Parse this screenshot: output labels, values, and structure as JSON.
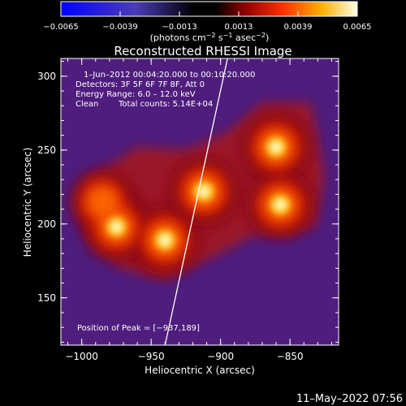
{
  "chart_data": {
    "type": "heatmap",
    "title": "Reconstructed RHESSI Image",
    "xlabel": "Heliocentric X (arcsec)",
    "ylabel": "Heliocentric Y (arcsec)",
    "xlim": [
      -1015,
      -815
    ],
    "ylim": [
      118,
      312
    ],
    "xticks": [
      -1000,
      -950,
      -900,
      -850
    ],
    "xtick_labels": [
      "−1000",
      "−950",
      "−900",
      "−850"
    ],
    "yticks": [
      150,
      200,
      250,
      300
    ],
    "ytick_labels": [
      "150",
      "200",
      "250",
      "300"
    ],
    "colorbar": {
      "min": -0.0065,
      "max": 0.0065,
      "ticks": [
        -0.0065,
        -0.0039,
        -0.0013,
        0.0013,
        0.0039,
        0.0065
      ],
      "tick_labels": [
        "−0.0065",
        "−0.0039",
        "−0.0013",
        "0.0013",
        "0.0039",
        "0.0065"
      ],
      "units_prefix": "(photons cm",
      "units_exp1": "−2",
      "units_mid1": " s",
      "units_exp2": "−1",
      "units_mid2": " asec",
      "units_exp3": "−2",
      "units_suffix": ")"
    },
    "annotations": [
      "1–Jun–2012 00:04:20.000 to 00:10:20.000",
      "Detectors: 3F 5F 6F 7F 8F, Att 0",
      "Energy Range: 6.0 – 12.0 keV"
    ],
    "clean_label": "Clean",
    "total_counts": "Total counts: 5.14E+04",
    "peak_label": "Position of Peak = [−937,189]",
    "peak": [
      -937,
      189
    ],
    "sources": [
      {
        "x": -940,
        "y": 189,
        "value": 0.0065
      },
      {
        "x": -860,
        "y": 252,
        "value": 0.0065
      },
      {
        "x": -912,
        "y": 222,
        "value": 0.0062
      },
      {
        "x": -857,
        "y": 213,
        "value": 0.006
      },
      {
        "x": -975,
        "y": 198,
        "value": 0.0057
      },
      {
        "x": -985,
        "y": 215,
        "value": 0.004
      }
    ],
    "limb_line": [
      [
        -940,
        118
      ],
      [
        -895,
        312
      ]
    ],
    "background_value": -0.0035
  },
  "timestamp": "11–May–2022 07:56"
}
